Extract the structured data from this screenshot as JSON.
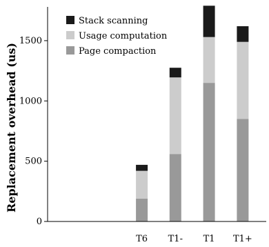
{
  "chart_data": {
    "type": "bar",
    "stacked": true,
    "categories": [
      "T6",
      "T1-",
      "T1",
      "T1+"
    ],
    "category_positions": [
      1,
      2,
      3,
      4
    ],
    "xlim": [
      -1.8,
      4.7
    ],
    "series": [
      {
        "name": "Page compaction",
        "values": [
          190,
          560,
          1150,
          850
        ],
        "color": "#999999"
      },
      {
        "name": "Usage computation",
        "values": [
          230,
          635,
          380,
          640
        ],
        "color": "#cccccc"
      },
      {
        "name": "Stack scanning",
        "values": [
          50,
          80,
          260,
          130
        ],
        "color": "#1a1a1a"
      }
    ],
    "legend_order": [
      "Stack scanning",
      "Usage computation",
      "Page compaction"
    ],
    "ylabel": "Replacement overhead (us)",
    "xlabel": "",
    "ylim": [
      0,
      1780
    ],
    "yticks": [
      0,
      500,
      1000,
      1500
    ],
    "grid": false,
    "legend_position": "top-left"
  }
}
